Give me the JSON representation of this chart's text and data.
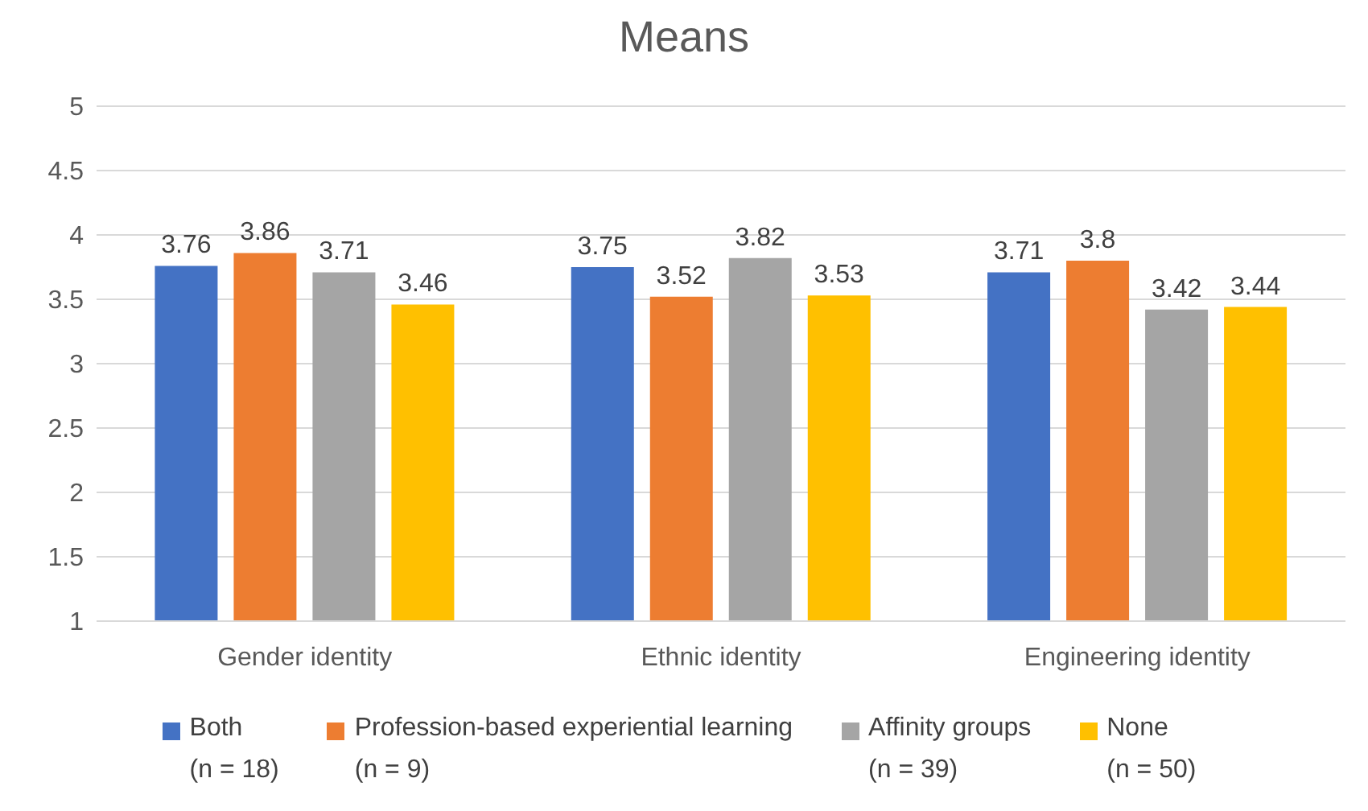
{
  "chart_data": {
    "type": "bar",
    "title": "Means",
    "categories": [
      "Gender identity",
      "Ethnic identity",
      "Engineering identity"
    ],
    "series": [
      {
        "name": "Both\n(n = 18)",
        "color": "#4472c4",
        "values": [
          3.76,
          3.75,
          3.71
        ]
      },
      {
        "name": "Profession-based experiential learning\n(n = 9)",
        "color": "#ed7d31",
        "values": [
          3.86,
          3.52,
          3.8
        ]
      },
      {
        "name": "Affinity groups\n(n = 39)",
        "color": "#a5a5a5",
        "values": [
          3.71,
          3.82,
          3.42
        ]
      },
      {
        "name": "None\n(n = 50)",
        "color": "#ffc000",
        "values": [
          3.46,
          3.53,
          3.44
        ]
      }
    ],
    "ylim": [
      1,
      5
    ],
    "yticks": [
      1,
      1.5,
      2,
      2.5,
      3,
      3.5,
      4,
      4.5,
      5
    ],
    "grid": "y",
    "legend": "bottom",
    "data_labels": true
  }
}
